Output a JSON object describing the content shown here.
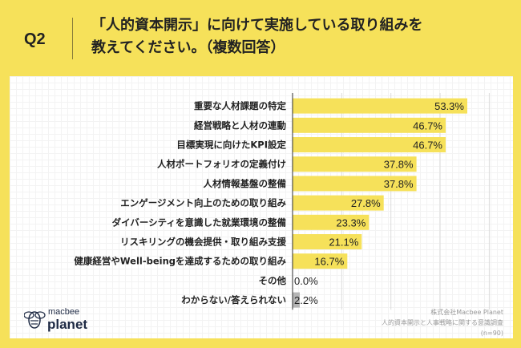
{
  "header": {
    "question": "Q2",
    "title_line1": "「人的資本開示」に向けて実施している取り組みを",
    "title_line2": "教えてください。（複数回答）"
  },
  "colors": {
    "background": "#f6e15a",
    "bar": "#f6e15a",
    "bar_muted": "#b5b5b5"
  },
  "chart_data": {
    "type": "bar",
    "orientation": "horizontal",
    "categories": [
      "重要な人材課題の特定",
      "経営戦略と人材の連動",
      "目標実現に向けたKPI設定",
      "人材ポートフォリオの定義付け",
      "人材情報基盤の整備",
      "エンゲージメント向上のための取り組み",
      "ダイバーシティを意識した就業環境の整備",
      "リスキリングの機会提供・取り組み支援",
      "健康経営やWell-beingを達成するための取り組み",
      "その他",
      "わからない/答えられない"
    ],
    "values": [
      53.3,
      46.7,
      46.7,
      37.8,
      37.8,
      27.8,
      23.3,
      21.1,
      16.7,
      0.0,
      2.2
    ],
    "value_labels": [
      "53.3%",
      "46.7%",
      "46.7%",
      "37.8%",
      "37.8%",
      "27.8%",
      "23.3%",
      "21.1%",
      "16.7%",
      "0.0%",
      "2.2%"
    ],
    "xlim": [
      0,
      60
    ],
    "grid_step": 15,
    "grid": true,
    "unit": "%"
  },
  "source": {
    "line1": "株式会社Macbee Planet",
    "line2": "人的資本開示と人事戦略に関する意識調査",
    "line3": "(n=90)"
  },
  "logo": {
    "text_top": "macbee",
    "text_bottom": "planet"
  }
}
